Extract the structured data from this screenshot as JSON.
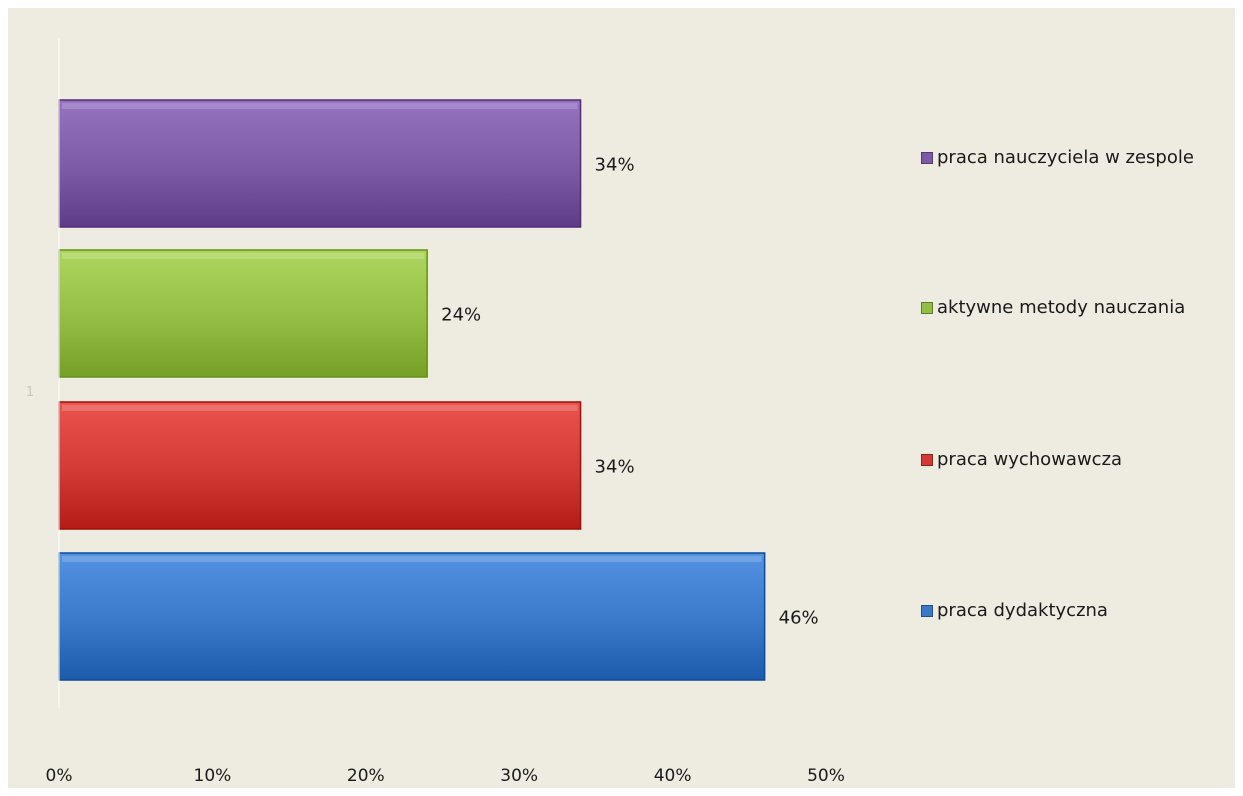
{
  "chart_data": {
    "type": "bar",
    "orientation": "horizontal",
    "category_label": "1",
    "xlim": [
      0,
      50
    ],
    "x_ticks": [
      "0%",
      "10%",
      "20%",
      "30%",
      "40%",
      "50%"
    ],
    "series": [
      {
        "name": "praca nauczyciela w zespole",
        "value": 34,
        "label": "34%",
        "color": "#7d5aa6"
      },
      {
        "name": "aktywne metody nauczania",
        "value": 24,
        "label": "24%",
        "color": "#93bd45"
      },
      {
        "name": "praca wychowawcza",
        "value": 34,
        "label": "34%",
        "color": "#d13a35"
      },
      {
        "name": "praca dydaktyczna",
        "value": 46,
        "label": "46%",
        "color": "#3a78c9"
      }
    ],
    "legend": {
      "position": "right"
    },
    "grid": false
  }
}
